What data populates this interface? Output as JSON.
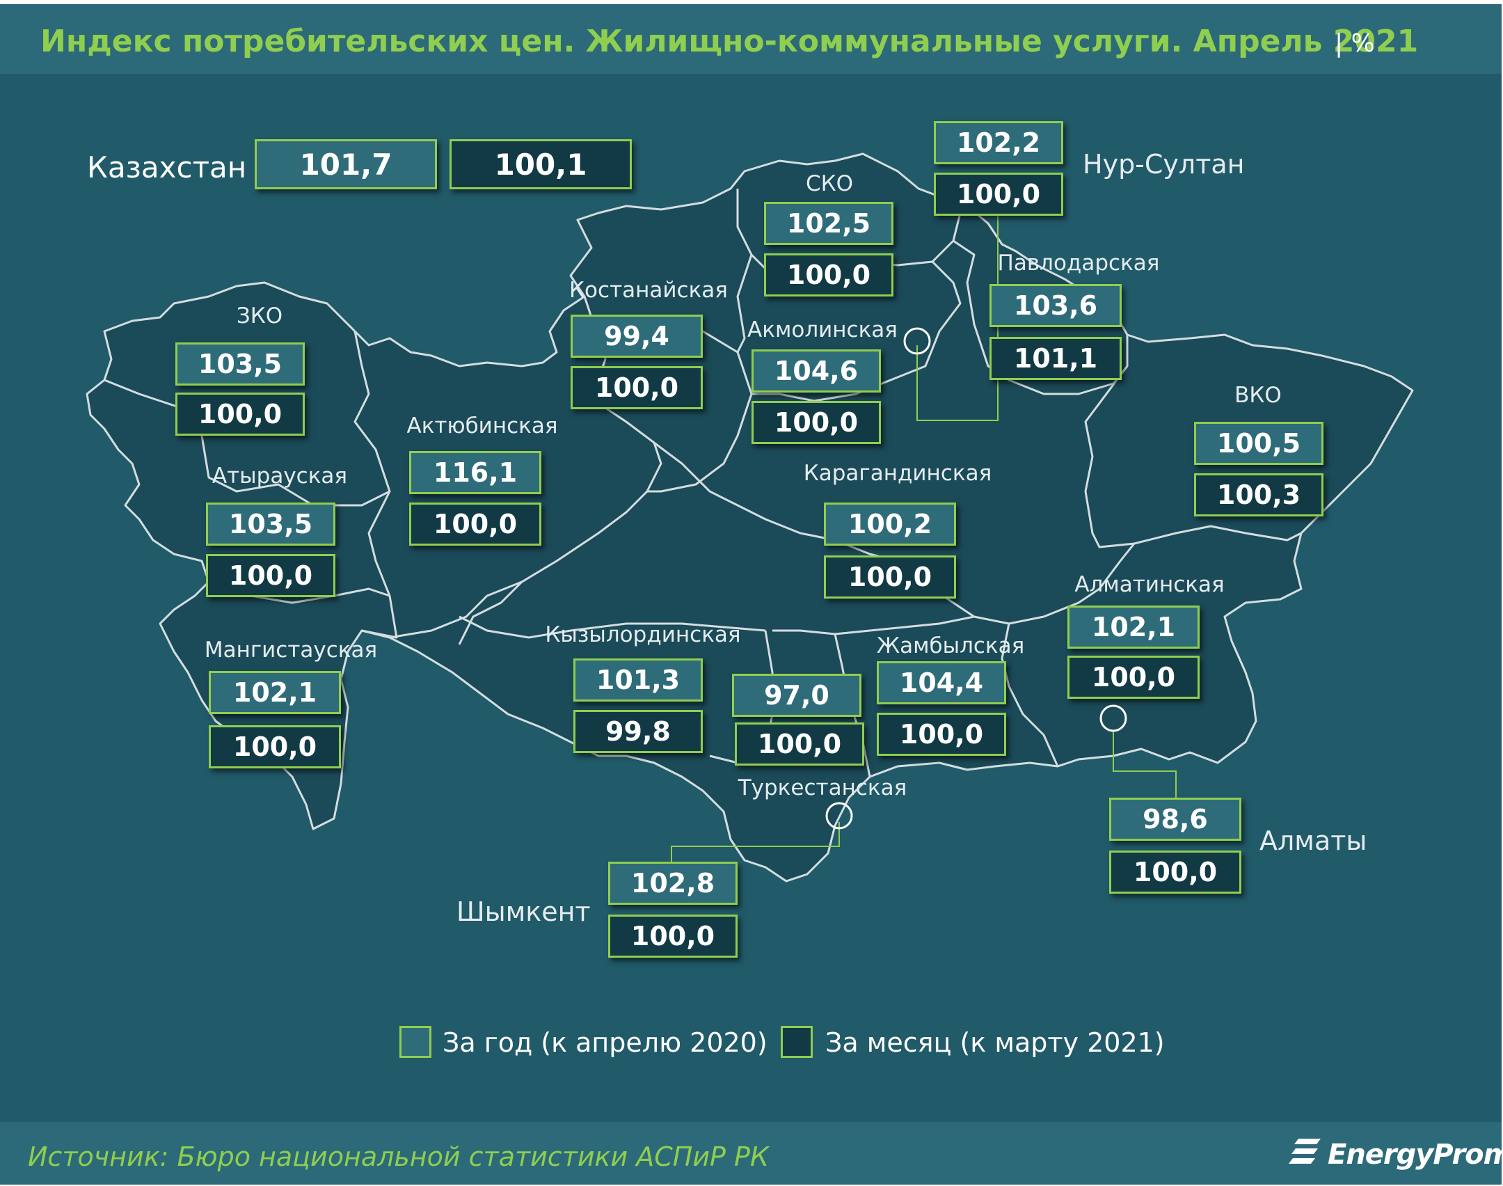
{
  "title": "Индекс потребительских цен. Жилищно-коммунальные услуги. Апрель 2021",
  "unit": "| %",
  "country": {
    "name": "Казахстан",
    "year": "101,7",
    "month": "100,1"
  },
  "regions": [
    {
      "key": "zko",
      "name": "ЗКО",
      "year": "103,5",
      "month": "100,0"
    },
    {
      "key": "atyrau",
      "name": "Атырауская",
      "year": "103,5",
      "month": "100,0"
    },
    {
      "key": "mangistau",
      "name": "Мангистауская",
      "year": "102,1",
      "month": "100,0"
    },
    {
      "key": "aktobe",
      "name": "Актюбинская",
      "year": "116,1",
      "month": "100,0"
    },
    {
      "key": "kostanay",
      "name": "Костанайская",
      "year": "99,4",
      "month": "100,0"
    },
    {
      "key": "sko",
      "name": "СКО",
      "year": "102,5",
      "month": "100,0"
    },
    {
      "key": "akmola",
      "name": "Акмолинская",
      "year": "104,6",
      "month": "100,0"
    },
    {
      "key": "pavlodar",
      "name": "Павлодарская",
      "year": "103,6",
      "month": "101,1"
    },
    {
      "key": "vko",
      "name": "ВКО",
      "year": "100,5",
      "month": "100,3"
    },
    {
      "key": "karaganda",
      "name": "Карагандинская",
      "year": "100,2",
      "month": "100,0"
    },
    {
      "key": "kyzylorda",
      "name": "Кызылординская",
      "year": "101,3",
      "month": "99,8"
    },
    {
      "key": "turkestan",
      "name": "Туркестанская",
      "year": "97,0",
      "month": "100,0"
    },
    {
      "key": "zhambyl",
      "name": "Жамбылская",
      "year": "104,4",
      "month": "100,0"
    },
    {
      "key": "almaty_reg",
      "name": "Алматинская",
      "year": "102,1",
      "month": "100,0"
    }
  ],
  "cities": [
    {
      "key": "nursultan",
      "name": "Нур-Султан",
      "year": "102,2",
      "month": "100,0"
    },
    {
      "key": "almaty",
      "name": "Алматы",
      "year": "98,6",
      "month": "100,0"
    },
    {
      "key": "shymkent",
      "name": "Шымкент",
      "year": "102,8",
      "month": "100,0"
    }
  ],
  "legend": {
    "year": "За год (к апрелю 2020)",
    "month": "За месяц (к марту 2021)"
  },
  "source": "Источник: Бюро национальной  статистики АСПиР РК",
  "brand": "EnergyProm",
  "colors": {
    "background": "#215a69",
    "accent": "#8fce4f",
    "map_fill": "#1b4a58",
    "border": "#d3dde0"
  }
}
